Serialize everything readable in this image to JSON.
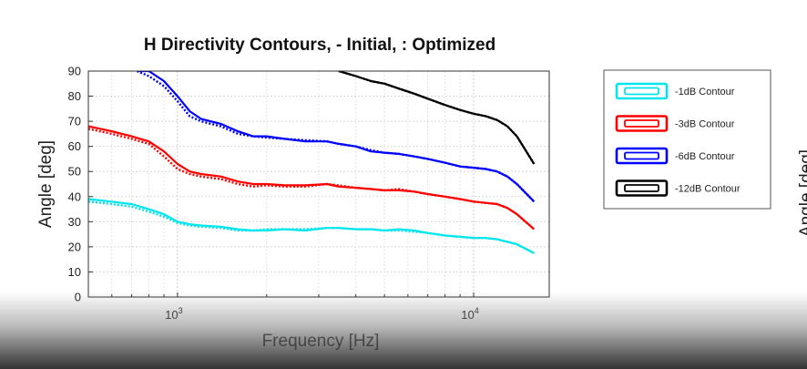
{
  "chart_data": {
    "type": "line",
    "title": "H Directivity Contours, - Initial, : Optimized",
    "xlabel": "Frequency [Hz]",
    "ylabel": "Angle [deg]",
    "xscale": "log",
    "xlim": [
      500,
      18000
    ],
    "ylim": [
      0,
      90
    ],
    "yticks": [
      0,
      10,
      20,
      30,
      40,
      50,
      60,
      70,
      80,
      90
    ],
    "xticks": [
      {
        "value": 1000,
        "base": "10",
        "exp": "3"
      },
      {
        "value": 10000,
        "base": "10",
        "exp": "4"
      }
    ],
    "grid": true,
    "legend_position": "outside-right",
    "line_styles": {
      "initial": "solid",
      "optimized": "dotted"
    },
    "series": [
      {
        "name": "-1dB Contour",
        "color": "#00e5ee",
        "x": [
          500,
          600,
          700,
          800,
          900,
          1000,
          1100,
          1200,
          1400,
          1600,
          1800,
          2000,
          2300,
          2700,
          3200,
          3500,
          4000,
          4500,
          5000,
          5600,
          6300,
          7000,
          8000,
          9000,
          10000,
          11000,
          12000,
          13000,
          14000,
          16000
        ],
        "initial": [
          39,
          38,
          37,
          35,
          33,
          30,
          29,
          28.5,
          28,
          27,
          26.5,
          26.5,
          27,
          26.5,
          27.5,
          27.5,
          27,
          27,
          26.5,
          27,
          26.5,
          25.5,
          24.5,
          24,
          23.5,
          23.5,
          23,
          22,
          21,
          17.5
        ],
        "optimized": [
          38,
          37,
          36,
          34,
          32,
          29.5,
          28.5,
          28,
          27.5,
          26.5,
          26.5,
          27,
          27,
          27,
          27.5,
          27.5,
          27,
          27,
          26.5,
          26.5,
          26,
          25.5,
          24.5,
          24,
          23.5,
          23.5,
          23,
          22,
          21,
          17.5
        ]
      },
      {
        "name": "-3dB Contour",
        "color": "#ff0000",
        "x": [
          500,
          600,
          700,
          800,
          900,
          1000,
          1100,
          1200,
          1400,
          1600,
          1800,
          2000,
          2300,
          2700,
          3200,
          3500,
          4000,
          4500,
          5000,
          5600,
          6300,
          7000,
          8000,
          9000,
          10000,
          11000,
          12000,
          13000,
          14000,
          16000
        ],
        "initial": [
          68,
          66,
          64,
          62,
          58,
          53,
          50,
          49,
          48,
          46,
          45,
          45,
          44.5,
          44.5,
          45,
          44,
          43.5,
          43,
          42.5,
          42.5,
          42,
          41,
          40,
          39,
          38,
          37.5,
          37,
          35.5,
          33,
          27
        ],
        "optimized": [
          67,
          65,
          63,
          61,
          56,
          51,
          49,
          48,
          47,
          45,
          44,
          44.5,
          44,
          44,
          45,
          44.5,
          43.5,
          43,
          42.5,
          43,
          42,
          41,
          40,
          39,
          38,
          37.5,
          37,
          35.5,
          33,
          27
        ]
      },
      {
        "name": "-6dB Contour",
        "color": "#0000ff",
        "x": [
          730,
          800,
          900,
          1000,
          1100,
          1200,
          1400,
          1600,
          1800,
          2000,
          2300,
          2700,
          3200,
          3500,
          4000,
          4500,
          5000,
          5600,
          6300,
          7000,
          8000,
          9000,
          10000,
          11000,
          12000,
          13000,
          14000,
          16000
        ],
        "initial": [
          90,
          90,
          86,
          80,
          74,
          71,
          69,
          66,
          64,
          64,
          63,
          62,
          62,
          61,
          60,
          58,
          57.5,
          57,
          56,
          55,
          53.5,
          52,
          51.5,
          51,
          50,
          48,
          45,
          38
        ],
        "optimized": [
          90,
          88,
          84,
          78,
          72,
          70,
          68,
          65,
          64,
          63.5,
          63,
          62.5,
          62,
          61,
          60,
          58.5,
          57.5,
          57,
          56,
          55,
          53.5,
          52,
          51.5,
          51,
          50,
          48,
          45,
          38
        ]
      },
      {
        "name": "-12dB Contour",
        "color": "#000000",
        "x": [
          3500,
          4000,
          4500,
          5000,
          5600,
          6300,
          7000,
          8000,
          9000,
          10000,
          11000,
          12000,
          13000,
          14000,
          16000
        ],
        "initial": [
          90,
          88,
          86,
          85,
          83,
          81,
          79,
          76.5,
          74.5,
          73,
          72,
          70.5,
          68,
          64,
          53
        ],
        "optimized": [
          90,
          88,
          86,
          85,
          83,
          81,
          79,
          76.5,
          74.5,
          73,
          72,
          70.5,
          68,
          64,
          53
        ]
      }
    ]
  }
}
